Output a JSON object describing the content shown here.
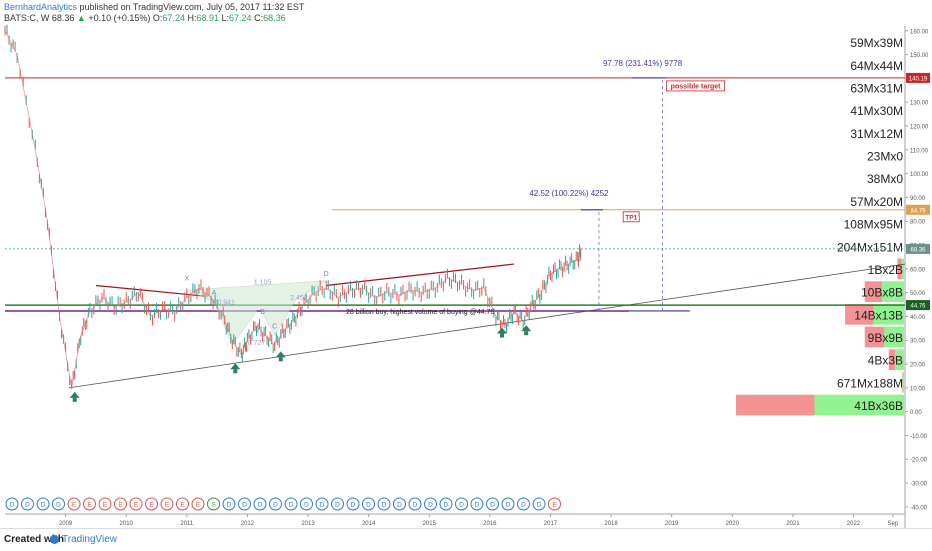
{
  "header": {
    "author": "BernhardAnalytics",
    "published_text": " published on TradingView.com, July 05, 2017 11:32 EST",
    "symbol": "BATS:C, W",
    "last": "68.36",
    "change": "+0.10 (+0.15%)",
    "open_label": "O:",
    "open": "67.24",
    "high_label": "H:",
    "high": "68.91",
    "low_label": "L:",
    "low": "67.24",
    "close_label": "C:",
    "close": "68.36"
  },
  "footer": {
    "created": "Created with",
    "brand": "TradingView"
  },
  "colors": {
    "up_candle": "#26a69a",
    "down_candle": "#ef5350",
    "trendline_dark_red": "#a01414",
    "support_line": "#2e7d32",
    "purple_line": "#7b1fa2",
    "target_line": "#c62828",
    "tp1_line": "#e0a050",
    "current_price": "#26a69a",
    "volume_profile_up": "#7ef07e",
    "volume_profile_down": "#f28080"
  },
  "chart_data": {
    "type": "line",
    "title": "",
    "x_ticks": [
      "2009",
      "2010",
      "2011",
      "2012",
      "2013",
      "2014",
      "2015",
      "2016",
      "2017",
      "2018",
      "2019",
      "2020",
      "2021",
      "2022",
      "Sep"
    ],
    "y_ticks": [
      160,
      150,
      140,
      130,
      120,
      110,
      100,
      90,
      80,
      70,
      60,
      50,
      40,
      30,
      20,
      10,
      0,
      -10,
      -20,
      -30,
      -40
    ],
    "ylim": [
      -43,
      162
    ],
    "series": [
      {
        "values": [
          [
            2008.0,
            160
          ],
          [
            2008.2,
            150
          ],
          [
            2008.5,
            110
          ],
          [
            2008.7,
            80
          ],
          [
            2008.9,
            40
          ],
          [
            2009.1,
            10
          ],
          [
            2009.25,
            32
          ],
          [
            2009.4,
            42
          ],
          [
            2009.6,
            48
          ],
          [
            2009.8,
            44
          ],
          [
            2010.0,
            46
          ],
          [
            2010.2,
            50
          ],
          [
            2010.4,
            40
          ],
          [
            2010.6,
            43
          ],
          [
            2010.8,
            42
          ],
          [
            2011.0,
            48
          ],
          [
            2011.2,
            52
          ],
          [
            2011.4,
            48
          ],
          [
            2011.6,
            40
          ],
          [
            2011.75,
            30
          ],
          [
            2011.9,
            24
          ],
          [
            2012.0,
            30
          ],
          [
            2012.15,
            36
          ],
          [
            2012.3,
            32
          ],
          [
            2012.45,
            28
          ],
          [
            2012.6,
            34
          ],
          [
            2012.75,
            38
          ],
          [
            2012.9,
            44
          ],
          [
            2013.1,
            50
          ],
          [
            2013.3,
            52
          ],
          [
            2013.5,
            48
          ],
          [
            2013.7,
            51
          ],
          [
            2013.9,
            52
          ],
          [
            2014.1,
            48
          ],
          [
            2014.3,
            50
          ],
          [
            2014.5,
            49
          ],
          [
            2014.7,
            51
          ],
          [
            2014.9,
            50
          ],
          [
            2015.1,
            52
          ],
          [
            2015.3,
            56
          ],
          [
            2015.5,
            54
          ],
          [
            2015.7,
            51
          ],
          [
            2015.9,
            52
          ],
          [
            2016.1,
            40
          ],
          [
            2016.25,
            36
          ],
          [
            2016.4,
            42
          ],
          [
            2016.55,
            38
          ],
          [
            2016.7,
            45
          ],
          [
            2016.85,
            50
          ],
          [
            2017.0,
            58
          ],
          [
            2017.15,
            60
          ],
          [
            2017.3,
            62
          ],
          [
            2017.45,
            64
          ],
          [
            2017.51,
            68.36
          ]
        ]
      }
    ],
    "current_price": 68.36,
    "price_labels": [
      {
        "value": 140.19,
        "label": "140.19"
      },
      {
        "value": 84.79,
        "label": "84.79"
      },
      {
        "value": 68.36,
        "label": "68.36"
      },
      {
        "value": 44.76,
        "label": "44.76"
      }
    ],
    "annotations": {
      "target_text": "97.78 (231.41%) 9778",
      "possible_target": "possible target",
      "tp1_measure": "42.52 (100.22%) 4252",
      "tp1": "TP1",
      "buy_note": "28 billion buy, highest volume of buying @44.76",
      "pattern_labels": [
        "X",
        "A",
        "B",
        "C",
        "D"
      ],
      "ratio_labels": [
        "1.105",
        "0.941",
        "2.452",
        "0.727"
      ]
    },
    "volume_profile": [
      {
        "label": "59Mx39M",
        "up": 59,
        "down": 39
      },
      {
        "label": "64Mx44M",
        "up": 64,
        "down": 44
      },
      {
        "label": "63Mx31M",
        "up": 63,
        "down": 31
      },
      {
        "label": "41Mx30M",
        "up": 41,
        "down": 30
      },
      {
        "label": "31Mx12M",
        "up": 31,
        "down": 12
      },
      {
        "label": "23Mx0",
        "up": 23,
        "down": 0
      },
      {
        "label": "38Mx0",
        "up": 38,
        "down": 0
      },
      {
        "label": "57Mx20M",
        "up": 57,
        "down": 20
      },
      {
        "label": "108Mx95M",
        "up": 108,
        "down": 95
      },
      {
        "label": "204Mx151M",
        "up": 204,
        "down": 151
      },
      {
        "label": "1Bx2B",
        "up": 1000,
        "down": 2000
      },
      {
        "label": "10Bx8B",
        "up": 10000,
        "down": 8000
      },
      {
        "label": "14Bx13B",
        "up": 14000,
        "down": 13000
      },
      {
        "label": "9Bx9B",
        "up": 9000,
        "down": 9000
      },
      {
        "label": "4Bx3B",
        "up": 4000,
        "down": 3000
      },
      {
        "label": "671Mx188M",
        "up": 671,
        "down": 188
      },
      {
        "label": "41Bx36B",
        "up": 41000,
        "down": 36000
      }
    ],
    "event_markers": [
      "D",
      "D",
      "D",
      "D",
      "E",
      "E",
      "E",
      "E",
      "E",
      "E",
      "E",
      "E",
      "E",
      "S",
      "D",
      "D",
      "D",
      "D",
      "D",
      "D",
      "D",
      "D",
      "D",
      "D",
      "D",
      "D",
      "D",
      "D",
      "D",
      "D",
      "D",
      "D",
      "D",
      "D",
      "D",
      "E"
    ]
  }
}
